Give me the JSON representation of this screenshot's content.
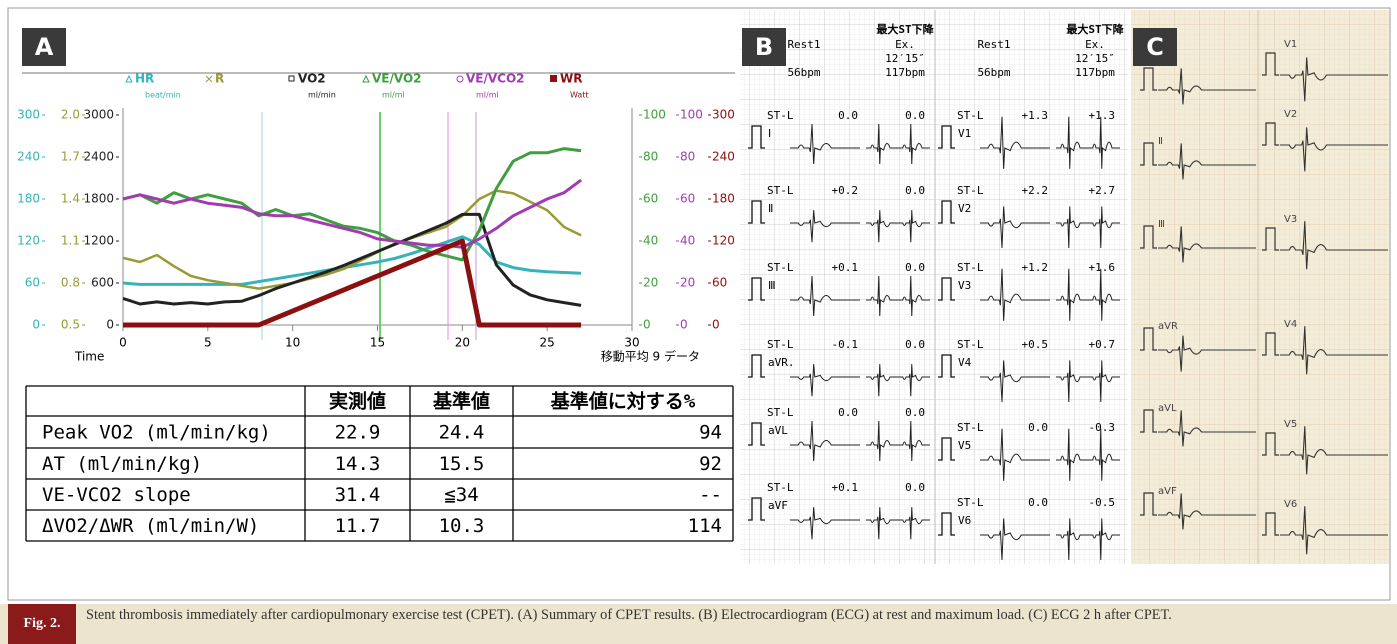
{
  "panel_labels": [
    "A",
    "B",
    "C"
  ],
  "chart_data": {
    "type": "line",
    "x_label": "Time",
    "note": "移動平均 9 データ",
    "x": [
      0,
      1,
      2,
      3,
      4,
      5,
      6,
      7,
      8,
      9,
      10,
      11,
      12,
      13,
      14,
      15,
      16,
      17,
      18,
      19,
      20,
      21,
      22,
      23,
      24,
      25,
      26,
      27
    ],
    "xlim": [
      0,
      30
    ],
    "xticks": [
      0,
      5,
      10,
      15,
      20,
      25,
      30
    ],
    "series": [
      {
        "name": "HR",
        "unit": "beat/min",
        "color": "#35b3bb",
        "ylim": [
          0,
          300
        ],
        "yticks": [
          0,
          60,
          120,
          180,
          240,
          300
        ],
        "values": [
          60,
          58,
          58,
          58,
          58,
          58,
          58,
          58,
          62,
          66,
          70,
          74,
          78,
          82,
          86,
          90,
          95,
          102,
          110,
          118,
          126,
          115,
          90,
          82,
          78,
          76,
          75,
          74
        ]
      },
      {
        "name": "R",
        "color": "#9a9a35",
        "ylim": [
          0.5,
          2
        ],
        "yticks": [
          0.5,
          0.8,
          1.1,
          1.4,
          1.7,
          {
            "value": 2,
            "label": "2.0"
          }
        ],
        "values": [
          0.98,
          0.95,
          1.0,
          0.92,
          0.85,
          0.82,
          0.8,
          0.78,
          0.76,
          0.78,
          0.8,
          0.83,
          0.86,
          0.9,
          0.96,
          1.02,
          1.08,
          1.12,
          1.16,
          1.2,
          1.28,
          1.4,
          1.46,
          1.44,
          1.38,
          1.32,
          1.2,
          1.14
        ]
      },
      {
        "name": "VO2",
        "unit": "ml/min",
        "color": "#222222",
        "ylim": [
          0,
          3000
        ],
        "yticks": [
          0,
          600,
          1200,
          1800,
          2400,
          3000
        ],
        "values": [
          380,
          300,
          330,
          300,
          320,
          300,
          330,
          340,
          420,
          520,
          600,
          680,
          760,
          850,
          950,
          1050,
          1150,
          1250,
          1350,
          1450,
          1580,
          1580,
          860,
          570,
          430,
          360,
          320,
          280
        ]
      },
      {
        "name": "VE/VO2",
        "unit": "ml/ml",
        "color": "#3f9e3f",
        "ylim": [
          0,
          100
        ],
        "yticks": [
          0,
          20,
          40,
          60,
          80,
          100
        ],
        "values": [
          60,
          62,
          58,
          63,
          60,
          62,
          60,
          58,
          52,
          55,
          52,
          53,
          50,
          47,
          46,
          44,
          40,
          38,
          35,
          33,
          31,
          45,
          65,
          78,
          82,
          82,
          84,
          83
        ]
      },
      {
        "name": "VE/VCO2",
        "unit": "ml/ml",
        "color": "#a03cb0",
        "ylim": [
          0,
          100
        ],
        "yticks": [
          0,
          20,
          40,
          60,
          80,
          100
        ],
        "values": [
          60,
          62,
          60,
          58,
          60,
          58,
          57,
          56,
          53,
          52,
          52,
          50,
          48,
          46,
          44,
          41,
          40,
          39,
          38,
          38,
          37,
          41,
          46,
          52,
          56,
          60,
          63,
          69
        ]
      },
      {
        "name": "WR",
        "unit": "Watt",
        "color": "#8b1010",
        "ylim": [
          0,
          300
        ],
        "yticks": [
          0,
          60,
          120,
          180,
          240,
          300
        ],
        "values": [
          0,
          0,
          0,
          0,
          0,
          0,
          0,
          0,
          0,
          10,
          20,
          30,
          40,
          50,
          60,
          70,
          80,
          90,
          100,
          110,
          120,
          0,
          0,
          0,
          0,
          0,
          0,
          0
        ]
      }
    ]
  },
  "table": {
    "header": [
      "実測値",
      "基準値",
      "基準値に対する%"
    ],
    "rows": [
      [
        "Peak VO2 (ml/min/kg)",
        22.9,
        24.4,
        94
      ],
      [
        "AT (ml/min/kg)",
        14.3,
        15.5,
        92
      ],
      [
        "VE-VCO2 slope",
        31.4,
        "≦34",
        "--"
      ],
      [
        "ΔVO2/ΔWR (ml/min/W)",
        11.7,
        10.3,
        114
      ]
    ]
  },
  "ecg_b": {
    "st_label": "ST-L",
    "columns": [
      {
        "title": "最大ST下降",
        "rest": "Rest1",
        "ex": "Ex.",
        "ex_time": "12′15″",
        "rest_rate": "56bpm",
        "ex_rate": "117bpm",
        "leads": [
          {
            "name": "Ⅰ",
            "rest": "0.0",
            "ex": "0.0"
          },
          {
            "name": "Ⅱ",
            "rest": "+0.2",
            "ex": "0.0"
          },
          {
            "name": "Ⅲ",
            "rest": "+0.1",
            "ex": "0.0"
          },
          {
            "name": "aVR.",
            "rest": "-0.1",
            "ex": "0.0"
          },
          {
            "name": "aVL",
            "rest": "0.0",
            "ex": "0.0"
          },
          {
            "name": "aVF",
            "rest": "+0.1",
            "ex": "0.0"
          }
        ]
      },
      {
        "title": "最大ST下降",
        "rest": "Rest1",
        "ex": "Ex.",
        "ex_time": "12′15″",
        "rest_rate": "56bpm",
        "ex_rate": "117bpm",
        "leads": [
          {
            "name": "V1",
            "rest": "+1.3",
            "ex": "+1.3"
          },
          {
            "name": "V2",
            "rest": "+2.2",
            "ex": "+2.7"
          },
          {
            "name": "V3",
            "rest": "+1.2",
            "ex": "+1.6"
          },
          {
            "name": "V4",
            "rest": "+0.5",
            "ex": "+0.7"
          },
          {
            "name": "V5",
            "rest": "0.0",
            "ex": "-0.3"
          },
          {
            "name": "V6",
            "rest": "0.0",
            "ex": "-0.5"
          }
        ]
      }
    ]
  },
  "ecg_c": {
    "leads_left": [
      "Ⅱ",
      "Ⅲ",
      "aVR",
      "aVL",
      "aVF"
    ],
    "leads_right": [
      "V1",
      "V2",
      "V3",
      "V4",
      "V5",
      "V6"
    ]
  },
  "caption": {
    "label": "Fig. 2.",
    "text": "Stent thrombosis immediately after cardiopulmonary exercise test (CPET). (A) Summary of CPET results. (B) Electrocardiogram (ECG) at rest and maximum load. (C) ECG 2 h after CPET."
  }
}
